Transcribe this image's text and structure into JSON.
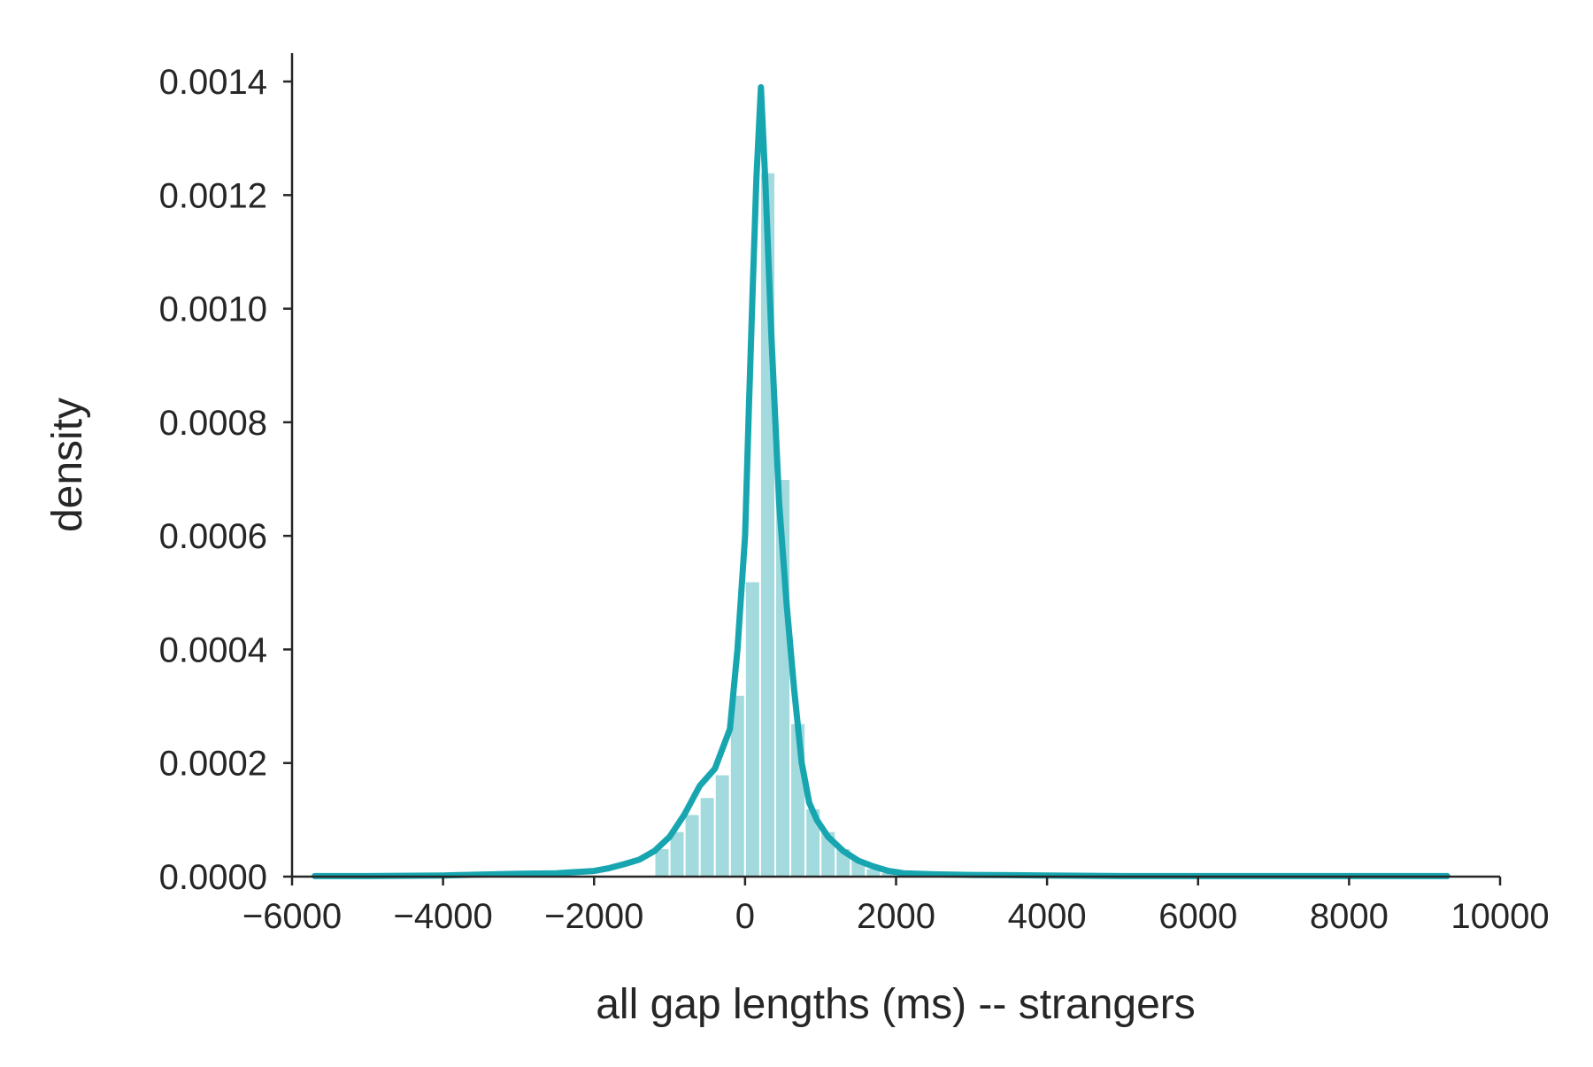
{
  "chart_data": {
    "type": "histogram",
    "title": "",
    "xlabel": "all gap lengths (ms) -- strangers",
    "ylabel": "density",
    "xlim": [
      -6000,
      10000
    ],
    "ylim": [
      0,
      0.00145
    ],
    "grid": false,
    "x_ticks": [
      -6000,
      -4000,
      -2000,
      0,
      2000,
      4000,
      6000,
      8000,
      10000
    ],
    "x_tick_labels": [
      "−6000",
      "−4000",
      "−2000",
      "0",
      "2000",
      "4000",
      "6000",
      "8000",
      "10000"
    ],
    "y_ticks": [
      0,
      0.0002,
      0.0004,
      0.0006,
      0.0008,
      0.001,
      0.0012,
      0.0014
    ],
    "y_tick_labels": [
      "0.0000",
      "0.0002",
      "0.0004",
      "0.0006",
      "0.0008",
      "0.0010",
      "0.0012",
      "0.0014"
    ],
    "histogram": {
      "color": "#a3dade",
      "bin_width": 200,
      "bins": [
        [
          -1200,
          5e-05
        ],
        [
          -1000,
          8e-05
        ],
        [
          -800,
          0.00011
        ],
        [
          -600,
          0.00014
        ],
        [
          -400,
          0.00018
        ],
        [
          -200,
          0.00032
        ],
        [
          0,
          0.00052
        ],
        [
          200,
          0.00124
        ],
        [
          400,
          0.0007
        ],
        [
          600,
          0.00027
        ],
        [
          800,
          0.00012
        ],
        [
          1000,
          8e-05
        ],
        [
          1200,
          5e-05
        ],
        [
          1400,
          3e-05
        ],
        [
          1600,
          1.5e-05
        ],
        [
          1800,
          8e-06
        ]
      ]
    },
    "kde": {
      "color": "#17a6b0",
      "points": [
        [
          -5700,
          1e-06
        ],
        [
          -5000,
          1e-06
        ],
        [
          -4000,
          2e-06
        ],
        [
          -3000,
          5e-06
        ],
        [
          -2500,
          6e-06
        ],
        [
          -2000,
          1e-05
        ],
        [
          -1800,
          1.5e-05
        ],
        [
          -1600,
          2.2e-05
        ],
        [
          -1400,
          3e-05
        ],
        [
          -1200,
          4.5e-05
        ],
        [
          -1000,
          7e-05
        ],
        [
          -800,
          0.00011
        ],
        [
          -600,
          0.00016
        ],
        [
          -400,
          0.00019
        ],
        [
          -200,
          0.00026
        ],
        [
          -100,
          0.0004
        ],
        [
          0,
          0.0006
        ],
        [
          50,
          0.00082
        ],
        [
          100,
          0.00103
        ],
        [
          150,
          0.00123
        ],
        [
          210,
          0.00139
        ],
        [
          270,
          0.00122
        ],
        [
          350,
          0.00095
        ],
        [
          450,
          0.00066
        ],
        [
          550,
          0.00048
        ],
        [
          650,
          0.00033
        ],
        [
          750,
          0.0002
        ],
        [
          850,
          0.00013
        ],
        [
          950,
          0.0001
        ],
        [
          1100,
          7e-05
        ],
        [
          1300,
          4.5e-05
        ],
        [
          1500,
          2.8e-05
        ],
        [
          1700,
          1.8e-05
        ],
        [
          1900,
          1e-05
        ],
        [
          2100,
          6e-06
        ],
        [
          2500,
          4e-06
        ],
        [
          3000,
          3e-06
        ],
        [
          4000,
          2e-06
        ],
        [
          5000,
          1e-06
        ],
        [
          6000,
          1e-06
        ],
        [
          7000,
          1e-06
        ],
        [
          8000,
          1e-06
        ],
        [
          9300,
          1e-06
        ]
      ]
    },
    "colors": {
      "axis": "#262626",
      "text": "#262626"
    }
  }
}
